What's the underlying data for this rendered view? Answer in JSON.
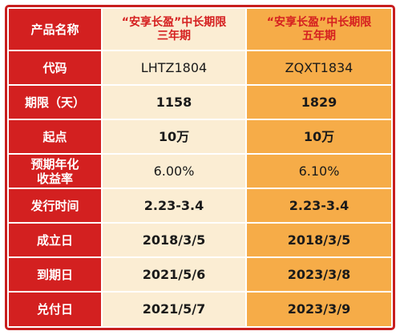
{
  "header": {
    "label": "产品名称",
    "product_a": {
      "line1": "“安享长盈”中长期限",
      "line2": "三年期"
    },
    "product_b": {
      "line1": "“安享长盈”中长期限",
      "line2": "五年期"
    }
  },
  "rows": [
    {
      "label": "代码",
      "a": "LHTZ1804",
      "b": "ZQXT1834"
    },
    {
      "label": "期限（天）",
      "a": "1158",
      "b": "1829"
    },
    {
      "label": "起点",
      "a": "10万",
      "b": "10万"
    },
    {
      "label_line1": "预期年化",
      "label_line2": "收益率",
      "a": "6.00%",
      "b": "6.10%"
    },
    {
      "label": "发行时间",
      "a": "2.23-3.4",
      "b": "2.23-3.4"
    },
    {
      "label": "成立日",
      "a": "2018/3/5",
      "b": "2018/3/5"
    },
    {
      "label": "到期日",
      "a": "2021/5/6",
      "b": "2023/3/8"
    },
    {
      "label": "兑付日",
      "a": "2021/5/7",
      "b": "2023/3/9"
    }
  ],
  "colors": {
    "label_bg": "#d32020",
    "product_a_bg": "#fbedd3",
    "product_b_bg": "#f6ac48",
    "header_text": "#d52020",
    "border": "#c81e1e"
  }
}
